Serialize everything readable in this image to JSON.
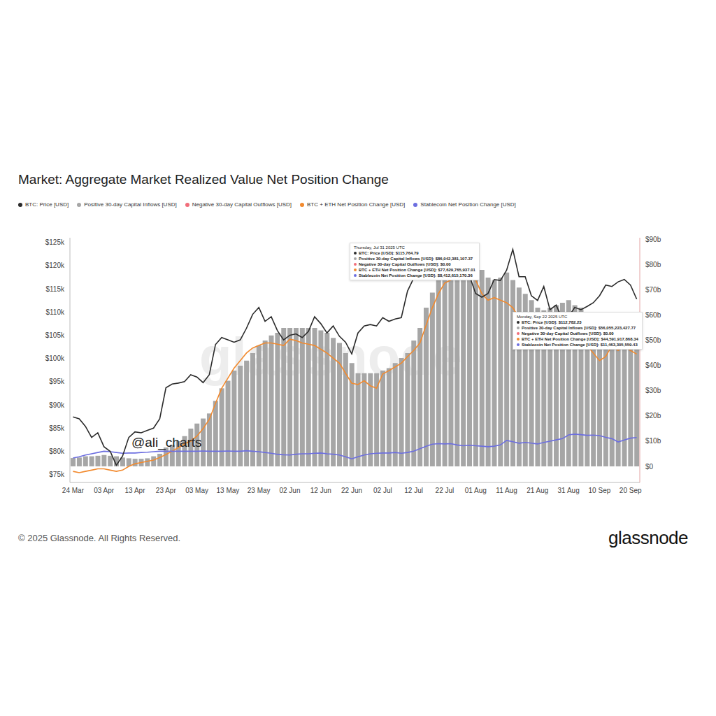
{
  "chart_data": {
    "type": "bar",
    "title": "Market: Aggregate Market Realized Value Net Position Change",
    "categories": [
      "24 Mar",
      null,
      null,
      null,
      null,
      "03 Apr",
      null,
      null,
      null,
      null,
      "13 Apr",
      null,
      null,
      null,
      null,
      "23 Apr",
      null,
      null,
      null,
      null,
      "03 May",
      null,
      null,
      null,
      null,
      "13 May",
      null,
      null,
      null,
      null,
      "23 May",
      null,
      null,
      null,
      null,
      "02 Jun",
      null,
      null,
      null,
      null,
      "12 Jun",
      null,
      null,
      null,
      null,
      "22 Jun",
      null,
      null,
      null,
      null,
      "02 Jul",
      null,
      null,
      null,
      null,
      "12 Jul",
      null,
      null,
      null,
      null,
      "22 Jul",
      null,
      null,
      null,
      null,
      "01 Aug",
      null,
      null,
      null,
      null,
      "11 Aug",
      null,
      null,
      null,
      null,
      "21 Aug",
      null,
      null,
      null,
      null,
      "31 Aug",
      null,
      null,
      null,
      null,
      "10 Sep",
      null,
      null,
      null,
      null,
      "20 Sep",
      null
    ],
    "series": [
      {
        "name": "BTC: Price [USD]",
        "type": "line",
        "color": "#2b2b2b",
        "values": [
          87400,
          87000,
          85400,
          83000,
          84000,
          81000,
          80000,
          77000,
          79000,
          83000,
          84200,
          84000,
          84500,
          85000,
          87000,
          93700,
          94500,
          94700,
          95000,
          96500,
          96000,
          94800,
          96500,
          103000,
          104500,
          104000,
          103500,
          104000,
          106500,
          109500,
          111000,
          108000,
          109000,
          106000,
          104000,
          105000,
          105300,
          104500,
          105800,
          109000,
          107500,
          105500,
          107000,
          104800,
          103500,
          101000,
          105500,
          107000,
          107300,
          107000,
          108800,
          108000,
          108500,
          108800,
          114500,
          117300,
          121000,
          118500,
          118000,
          117800,
          119800,
          118300,
          117800,
          118200,
          117800,
          114000,
          113200,
          114000,
          117000,
          116800,
          119000,
          123500,
          117600,
          117600,
          113500,
          112500,
          115500,
          110500,
          111500,
          108500,
          109000,
          111000,
          110500,
          111200,
          112000,
          113500,
          115800,
          115500,
          116500,
          117000,
          115800,
          112782.23
        ]
      },
      {
        "name": "Positive 30-day Capital Inflows [USD]",
        "type": "bar",
        "axis": "y2",
        "color": "#a6a6a6",
        "values": [
          3.3,
          3.5,
          4,
          4,
          4.2,
          4.5,
          4.2,
          4,
          3.5,
          3.2,
          3,
          3,
          3.2,
          4,
          5,
          7.5,
          8.5,
          10,
          12,
          15,
          17,
          19,
          21,
          26,
          31,
          34,
          38,
          40,
          42,
          45,
          48,
          50,
          52,
          53,
          55,
          55,
          55,
          55,
          55,
          55,
          54,
          53,
          51,
          49,
          45,
          41,
          37,
          37,
          37,
          37,
          38,
          39,
          41,
          43,
          45,
          50,
          55,
          63,
          69,
          74,
          77,
          78,
          80,
          81,
          85,
          85,
          78,
          75,
          74,
          75,
          77,
          74,
          71,
          68.5,
          66,
          63,
          62,
          63,
          64,
          65,
          66,
          64,
          63,
          61,
          60,
          57.5,
          57,
          56,
          56,
          57,
          56,
          56.06
        ]
      },
      {
        "name": "Negative 30-day Capital Outflows [USD]",
        "type": "bar",
        "axis": "y2",
        "color": "#f16d7a",
        "values": [
          0,
          0,
          0,
          0,
          0,
          0,
          0,
          0,
          0,
          0,
          0,
          0,
          0,
          0,
          0,
          0,
          0,
          0,
          0,
          0,
          0,
          0,
          0,
          0,
          0,
          0,
          0,
          0,
          0,
          0,
          0,
          0,
          0,
          0,
          0,
          0,
          0,
          0,
          0,
          0,
          0,
          0,
          0,
          0,
          0,
          0,
          0,
          0,
          0,
          0,
          0,
          0,
          0,
          0,
          0,
          0,
          0,
          0,
          0,
          0,
          0,
          0,
          0,
          0,
          0,
          0,
          0,
          0,
          0,
          0,
          0,
          0,
          0,
          0,
          0,
          0,
          0,
          0,
          0,
          0,
          0,
          0,
          0,
          0,
          0,
          0,
          0,
          0,
          0,
          0,
          0,
          0
        ]
      },
      {
        "name": "BTC + ETH Net Position Change [USD]",
        "type": "line",
        "axis": "y2",
        "color": "#f28a2e",
        "values": [
          -2,
          -2.5,
          -2,
          -1.5,
          -1,
          -1,
          -1.5,
          -2,
          -1.5,
          0,
          1,
          1.5,
          2,
          2.5,
          3.5,
          4.7,
          6,
          7.5,
          9,
          10,
          12,
          15,
          18.6,
          25,
          31,
          35,
          39,
          42,
          45,
          47,
          48,
          49,
          49,
          48.5,
          48,
          50.5,
          50,
          49,
          48.5,
          48,
          46.5,
          45,
          43,
          41,
          37,
          33,
          32.5,
          34,
          32,
          31,
          36.7,
          38,
          39.5,
          41,
          43.6,
          46,
          49,
          56,
          63,
          68.6,
          72.8,
          74,
          74.7,
          74.7,
          77,
          74,
          68.6,
          66,
          67,
          66,
          65,
          63,
          59,
          56,
          53,
          52,
          54.7,
          52.5,
          53,
          54.7,
          52,
          50.5,
          49,
          48,
          45,
          42,
          43.6,
          48,
          46,
          48,
          46,
          44.59
        ]
      },
      {
        "name": "Stablecoin Net Position Change [USD]",
        "type": "line",
        "axis": "y2",
        "color": "#6c6ee0",
        "values": [
          3.3,
          3.8,
          4.5,
          5,
          5.5,
          6,
          5.8,
          5.5,
          5.2,
          5.3,
          5.3,
          5.5,
          5.6,
          5.8,
          6,
          6,
          6,
          6,
          6,
          6,
          6,
          6.1,
          6,
          6,
          6,
          6.1,
          6,
          6,
          6.2,
          6,
          5.8,
          5.5,
          5.2,
          4.8,
          4.6,
          4.5,
          4.8,
          5,
          5,
          5.2,
          5.3,
          5,
          4.8,
          4.5,
          3.8,
          3,
          3.8,
          4.5,
          5,
          5.2,
          5.3,
          5.3,
          5.5,
          5.2,
          5.5,
          6,
          7,
          8,
          8.8,
          9,
          8.9,
          9,
          8.5,
          8.2,
          8.4,
          8.2,
          8,
          7.8,
          8,
          8.5,
          10.3,
          9.8,
          9.2,
          9.5,
          9.2,
          8.9,
          9.5,
          10,
          10.5,
          11,
          12.5,
          12.8,
          12.6,
          12.3,
          12.4,
          12.2,
          11.5,
          11,
          9.7,
          10.5,
          11.2,
          11.46
        ]
      }
    ],
    "ylim": [
      73300,
      126000
    ],
    "yticks": [
      {
        "value": 75000,
        "label": "$75k"
      },
      {
        "value": 80000,
        "label": "$80k"
      },
      {
        "value": 85000,
        "label": "$85k"
      },
      {
        "value": 90000,
        "label": "$90k"
      },
      {
        "value": 95000,
        "label": "$95k"
      },
      {
        "value": 100000,
        "label": "$100k"
      },
      {
        "value": 105000,
        "label": "$105k"
      },
      {
        "value": 110000,
        "label": "$110k"
      },
      {
        "value": 115000,
        "label": "$115k"
      },
      {
        "value": 120000,
        "label": "$120k"
      },
      {
        "value": 125000,
        "label": "$125k"
      }
    ],
    "y2lim": [
      -6.4,
      90.8
    ],
    "y2ticks": [
      {
        "value": 0,
        "label": "$0"
      },
      {
        "value": 10,
        "label": "$10b"
      },
      {
        "value": 20,
        "label": "$20b"
      },
      {
        "value": 30,
        "label": "$30b"
      },
      {
        "value": 40,
        "label": "$40b"
      },
      {
        "value": 50,
        "label": "$50b"
      },
      {
        "value": 60,
        "label": "$60b"
      },
      {
        "value": 70,
        "label": "$70b"
      },
      {
        "value": 80,
        "label": "$80b"
      },
      {
        "value": 90,
        "label": "$90b"
      }
    ],
    "stacked": true,
    "grid": false,
    "legend": "top-left",
    "annotations": [
      {
        "date": "Thursday, Jul 31 2025 UTC",
        "lines": [
          "BTC: Price [USD]: $115,764.79",
          "Positive 30-day Capital Inflows [USD]: $86,042,381,107.37",
          "Negative 30-day Capital Outflows [USD]: $0.00",
          "BTC + ETH Net Position Change [USD]: $77,629,765,937.01",
          "Stablecoin Net Position Change [USD]: $8,412,615,170.36"
        ]
      },
      {
        "date": "Monday, Sep 22 2025 UTC",
        "lines": [
          "BTC: Price [USD]: $112,782.23",
          "Positive 30-day Capital Inflows [USD]: $56,055,223,427.77",
          "Negative 30-day Capital Outflows [USD]: $0.00",
          "BTC + ETH Net Position Change [USD]: $44,591,917,868.34",
          "Stablecoin Net Position Change [USD]: $11,463,305,559.43"
        ]
      }
    ],
    "watermarks": [
      "glassnode",
      "@ali_charts"
    ],
    "footer": "© 2025 Glassnode. All Rights Reserved.",
    "logo": "glassnode"
  }
}
